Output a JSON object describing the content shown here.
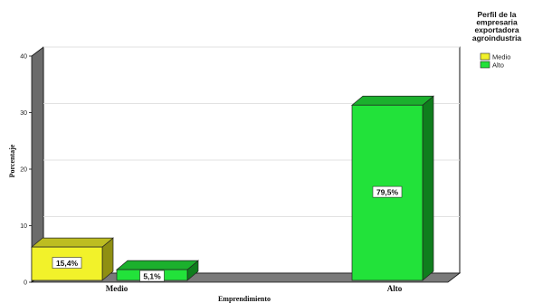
{
  "chart_data": {
    "type": "bar",
    "xlabel": "Emprendimiento",
    "ylabel": "Porcentaje",
    "ylim": [
      0,
      40
    ],
    "yticks": [
      0,
      10,
      20,
      30,
      40
    ],
    "categories": [
      "Medio",
      "Alto"
    ],
    "series": [
      {
        "name": "Medio",
        "color": "#f2f22a",
        "side_color": "#8f8f12",
        "values": [
          5.9,
          null
        ],
        "labels": [
          "15,4%",
          null
        ]
      },
      {
        "name": "Alto",
        "color": "#22e23a",
        "side_color": "#0f7d1d",
        "values": [
          1.9,
          31.0
        ],
        "labels": [
          "5,1%",
          "79,5%"
        ]
      }
    ],
    "legend": {
      "title_lines": [
        "Perfil de la",
        "empresaria",
        "exportadora",
        "agroindustria"
      ],
      "placement": "top-right"
    },
    "grid": true
  }
}
